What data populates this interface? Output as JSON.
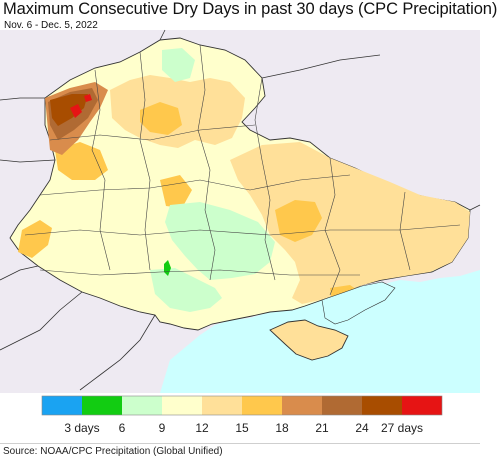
{
  "title": "Maximum Consecutive Dry Days in past 30 days (CPC Precipitation)",
  "subtitle": "Nov. 6 - Dec. 5, 2022",
  "source": "Source: NOAA/CPC Precipitation (Global Unified)",
  "colors": {
    "background_land": "#eeeaf2",
    "sea": "#ccffff",
    "borders": "#333333"
  },
  "legend": {
    "colors": [
      "#1aa3f2",
      "#12cc12",
      "#ccffcc",
      "#ffffcc",
      "#ffe099",
      "#ffc84c",
      "#d98c4c",
      "#b06a33",
      "#a84d00",
      "#e61414"
    ],
    "labels": [
      "3 days",
      "6",
      "9",
      "12",
      "15",
      "18",
      "21",
      "24",
      "27 days"
    ]
  }
}
